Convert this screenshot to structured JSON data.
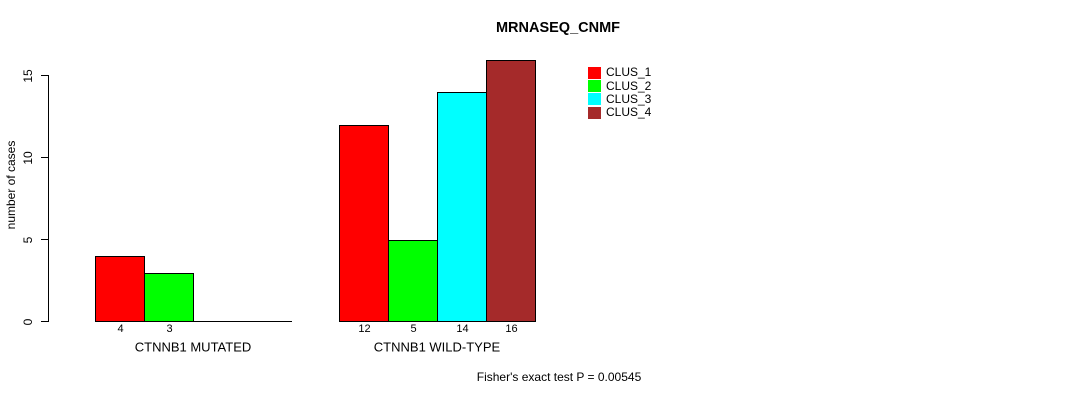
{
  "chart_data": {
    "type": "bar",
    "title": "MRNASEQ_CNMF",
    "ylabel": "number of cases",
    "ylim": [
      0,
      15
    ],
    "yticks": [
      0,
      5,
      10,
      15
    ],
    "grid": false,
    "legend_position": "top-right",
    "legend": [
      "CLUS_1",
      "CLUS_2",
      "CLUS_3",
      "CLUS_4"
    ],
    "series_colors": [
      "#FF0000",
      "#00FF00",
      "#00FFFF",
      "#A52A2A"
    ],
    "bar_border_color": "#000000",
    "background_color": "#FFFFFF",
    "groups": [
      {
        "label": "CTNNB1 MUTATED",
        "values": [
          4,
          3,
          0,
          0
        ],
        "visible_bar_labels": [
          "4",
          "3"
        ]
      },
      {
        "label": "CTNNB1 WILD-TYPE",
        "values": [
          12,
          5,
          14,
          16
        ],
        "visible_bar_labels": [
          "12",
          "5",
          "14",
          "16"
        ]
      }
    ],
    "annotation": "Fisher's exact test P = 0.00545"
  }
}
